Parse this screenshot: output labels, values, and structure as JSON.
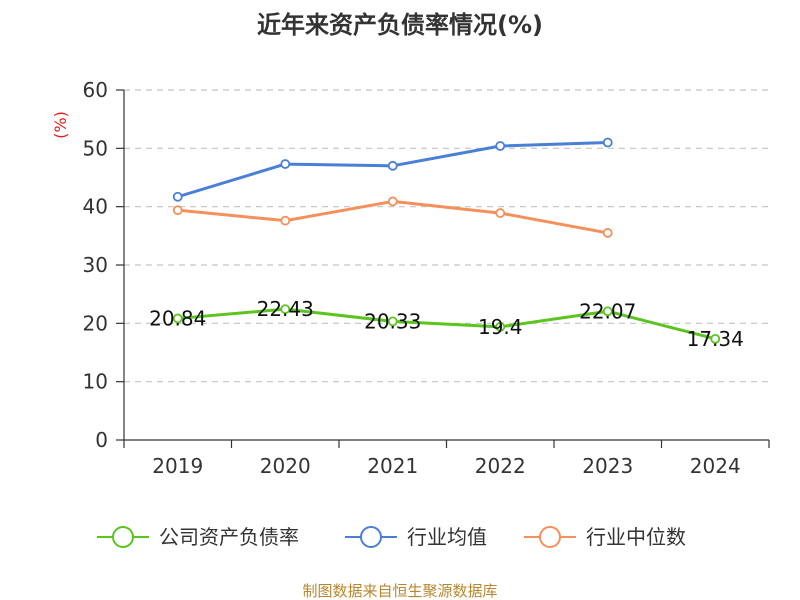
{
  "chart_data": {
    "type": "line",
    "title": "近年来资产负债率情况(%)",
    "ylabel": "(%)",
    "xlabel": "",
    "categories": [
      "2019",
      "2020",
      "2021",
      "2022",
      "2023",
      "2024"
    ],
    "ylim": [
      0,
      60
    ],
    "yticks": [
      0,
      10,
      20,
      30,
      40,
      50,
      60
    ],
    "grid": true,
    "legend_position": "bottom",
    "series": [
      {
        "name": "公司资产负债率",
        "color": "#5cc41e",
        "values": [
          20.84,
          22.43,
          20.33,
          19.4,
          22.07,
          17.34
        ],
        "show_labels": true
      },
      {
        "name": "行业均值",
        "color": "#4a7fd6",
        "values": [
          41.7,
          47.3,
          47.0,
          50.4,
          51.0,
          null
        ],
        "show_labels": false
      },
      {
        "name": "行业中位数",
        "color": "#f5905a",
        "values": [
          39.4,
          37.6,
          40.9,
          38.9,
          35.5,
          null
        ],
        "show_labels": false
      }
    ],
    "source": "制图数据来自恒生聚源数据库"
  }
}
